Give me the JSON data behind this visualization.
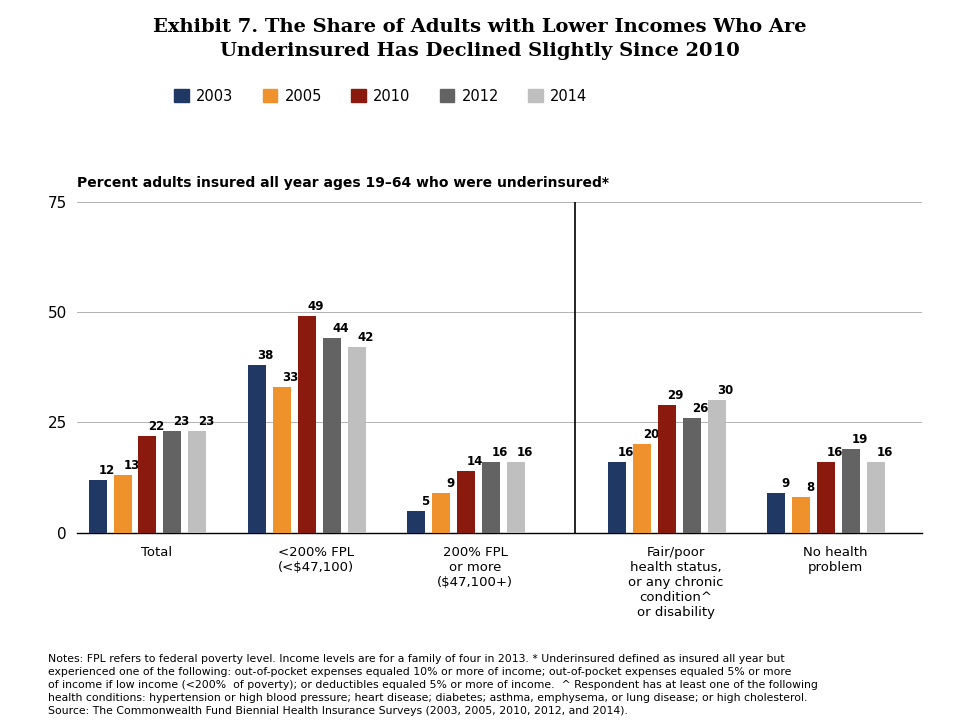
{
  "title": "Exhibit 7. The Share of Adults with Lower Incomes Who Are\nUnderinsured Has Declined Slightly Since 2010",
  "subtitle": "Percent adults insured all year ages 19–64 who were underinsured*",
  "notes": "Notes: FPL refers to federal poverty level. Income levels are for a family of four in 2013. * Underinsured defined as insured all year but\nexperienced one of the following: out-of-pocket expenses equaled 10% or more of income; out-of-pocket expenses equaled 5% or more\nof income if low income (<200%  of poverty); or deductibles equaled 5% or more of income.  ^ Respondent has at least one of the following\nhealth conditions: hypertension or high blood pressure; heart disease; diabetes; asthma, emphysema, or lung disease; or high cholesterol.\nSource: The Commonwealth Fund Biennial Health Insurance Surveys (2003, 2005, 2010, 2012, and 2014).",
  "categories": [
    "Total",
    "<200% FPL\n(<$47,100)",
    "200% FPL\nor more\n($47,100+)",
    "Fair/poor\nhealth status,\nor any chronic\ncondition^\nor disability",
    "No health\nproblem"
  ],
  "years": [
    "2003",
    "2005",
    "2010",
    "2012",
    "2014"
  ],
  "colors": [
    "#1f3864",
    "#f0922b",
    "#8b1a0e",
    "#636363",
    "#bfbfbf"
  ],
  "data": [
    [
      12,
      13,
      22,
      23,
      23
    ],
    [
      38,
      33,
      49,
      44,
      42
    ],
    [
      5,
      9,
      14,
      16,
      16
    ],
    [
      16,
      20,
      29,
      26,
      30
    ],
    [
      9,
      8,
      16,
      19,
      16
    ]
  ],
  "ylim": [
    0,
    75
  ],
  "yticks": [
    0,
    25,
    50,
    75
  ],
  "background_color": "#ffffff"
}
